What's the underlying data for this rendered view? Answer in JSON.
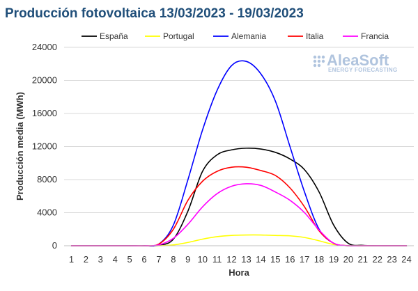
{
  "chart_data": {
    "type": "line",
    "title": "Producción fotovoltaica 13/03/2023 - 19/03/2023",
    "xlabel": "Hora",
    "ylabel": "Producción media (MWh)",
    "ylim": [
      0,
      24000
    ],
    "yticks": [
      0,
      4000,
      8000,
      12000,
      16000,
      20000,
      24000
    ],
    "x": [
      1,
      2,
      3,
      4,
      5,
      6,
      7,
      8,
      9,
      10,
      11,
      12,
      13,
      14,
      15,
      16,
      17,
      18,
      19,
      20,
      21,
      22,
      23,
      24
    ],
    "grid": true,
    "legend_position": "top",
    "series": [
      {
        "name": "España",
        "color": "#000000",
        "values": [
          0,
          0,
          0,
          0,
          0,
          0,
          50,
          800,
          4200,
          9000,
          11000,
          11600,
          11800,
          11700,
          11300,
          10500,
          9200,
          6500,
          2500,
          300,
          50,
          0,
          0,
          0
        ]
      },
      {
        "name": "Portugal",
        "color": "#ffff00",
        "values": [
          0,
          0,
          0,
          0,
          0,
          0,
          0,
          100,
          400,
          800,
          1100,
          1250,
          1300,
          1300,
          1250,
          1200,
          1000,
          600,
          150,
          0,
          0,
          0,
          0,
          0
        ]
      },
      {
        "name": "Alemania",
        "color": "#0000ff",
        "values": [
          0,
          0,
          0,
          0,
          0,
          0,
          200,
          2500,
          8000,
          14000,
          18800,
          21800,
          22300,
          20800,
          17500,
          12000,
          6500,
          2000,
          300,
          0,
          0,
          0,
          0,
          0
        ]
      },
      {
        "name": "Italia",
        "color": "#ff0000",
        "values": [
          0,
          0,
          0,
          0,
          0,
          0,
          200,
          2000,
          5500,
          7800,
          9000,
          9500,
          9500,
          9100,
          8500,
          7000,
          4700,
          1800,
          300,
          0,
          0,
          0,
          0,
          0
        ]
      },
      {
        "name": "Francia",
        "color": "#ff00ff",
        "values": [
          0,
          0,
          0,
          0,
          0,
          0,
          100,
          900,
          2600,
          4700,
          6300,
          7200,
          7500,
          7300,
          6500,
          5500,
          4000,
          1900,
          300,
          0,
          0,
          0,
          0,
          0
        ]
      }
    ]
  },
  "logo": {
    "name": "AleaSoft",
    "subtitle": "ENERGY FORECASTING"
  }
}
